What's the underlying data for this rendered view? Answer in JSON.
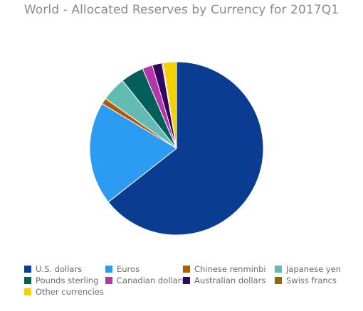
{
  "chart_data": {
    "type": "pie",
    "title": "World - Allocated Reserves by Currency for 2017Q1",
    "series": [
      {
        "name": "U.S. dollars",
        "value": 64.5,
        "color": "#0a3d91"
      },
      {
        "name": "Euros",
        "value": 19.3,
        "color": "#2b9cf2"
      },
      {
        "name": "Chinese renminbi",
        "value": 1.1,
        "color": "#b35a08"
      },
      {
        "name": "Japanese yen",
        "value": 4.6,
        "color": "#63bcb4"
      },
      {
        "name": "Pounds sterling",
        "value": 4.3,
        "color": "#035f5a"
      },
      {
        "name": "Canadian dollars",
        "value": 1.9,
        "color": "#b436a8"
      },
      {
        "name": "Australian dollars",
        "value": 1.8,
        "color": "#33075f"
      },
      {
        "name": "Swiss francs",
        "value": 0.2,
        "color": "#8a6c0a"
      },
      {
        "name": "Other currencies",
        "value": 2.5,
        "color": "#f7d000"
      }
    ],
    "start_angle": "12 o'clock",
    "direction": "clockwise",
    "legend_position": "bottom"
  }
}
